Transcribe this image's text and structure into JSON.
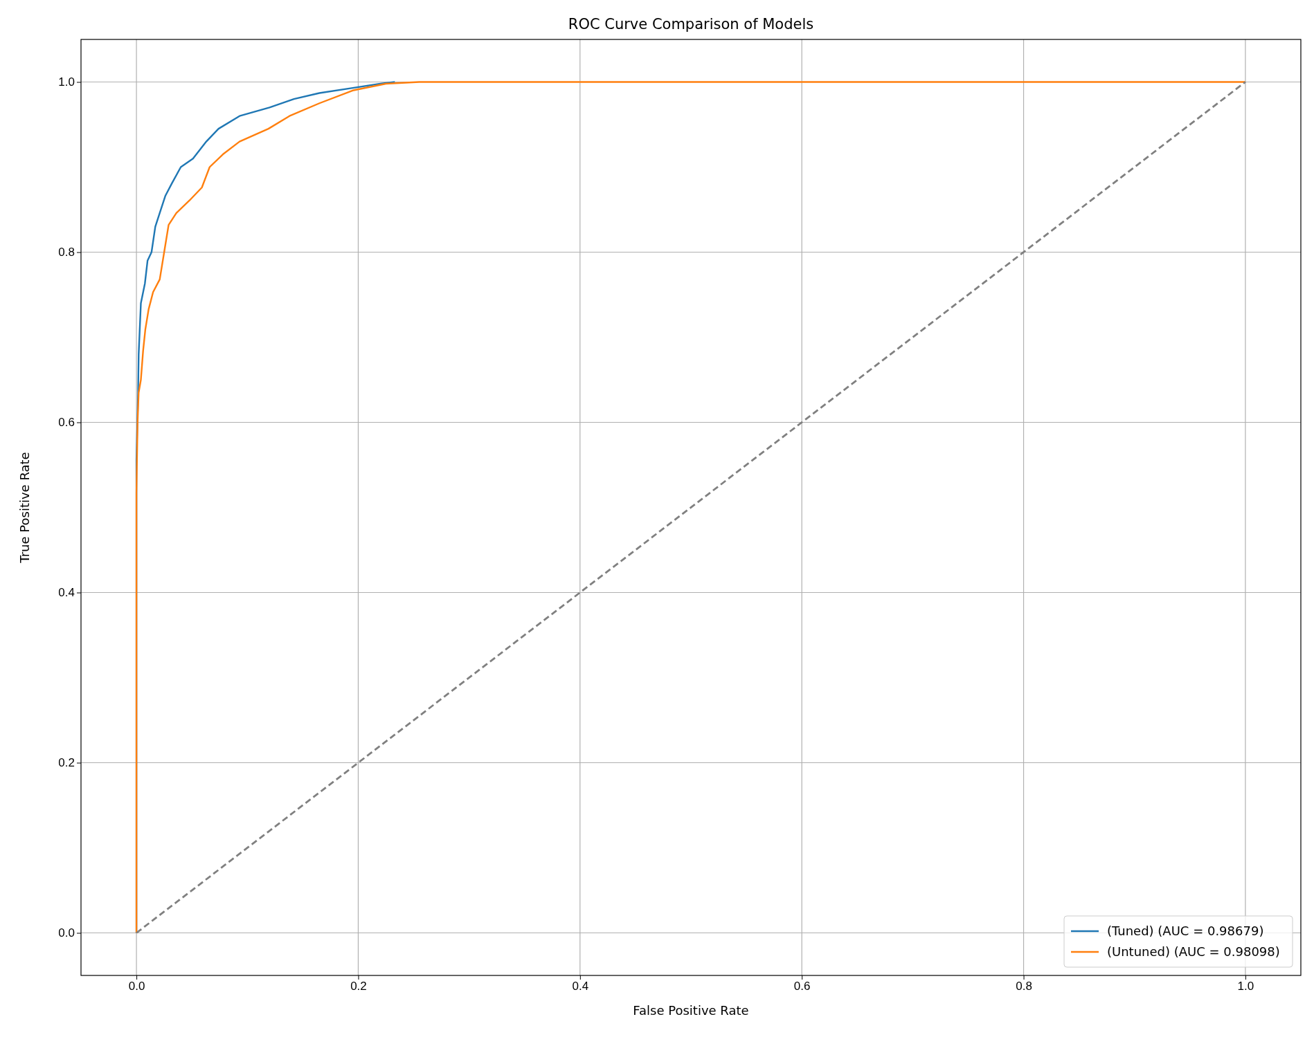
{
  "chart_data": {
    "type": "line",
    "title": "ROC Curve Comparison of Models",
    "xlabel": "False Positive Rate",
    "ylabel": "True Positive Rate",
    "xlim": [
      -0.05,
      1.05
    ],
    "ylim": [
      -0.05,
      1.05
    ],
    "xticks": [
      {
        "value": 0,
        "label": "0.0"
      },
      {
        "value": 0.2,
        "label": "0.2"
      },
      {
        "value": 0.4,
        "label": "0.4"
      },
      {
        "value": 0.6,
        "label": "0.6"
      },
      {
        "value": 0.8,
        "label": "0.8"
      },
      {
        "value": 1,
        "label": "1.0"
      }
    ],
    "yticks": [
      {
        "value": 0,
        "label": "0.0"
      },
      {
        "value": 0.2,
        "label": "0.2"
      },
      {
        "value": 0.4,
        "label": "0.4"
      },
      {
        "value": 0.6,
        "label": "0.6"
      },
      {
        "value": 0.8,
        "label": "0.8"
      },
      {
        "value": 1,
        "label": "1.0"
      }
    ],
    "grid": true,
    "legend": "bottom right",
    "series": [
      {
        "name": "(Tuned) (AUC = 0.98679)",
        "color": "#1f77b4",
        "x": [
          0,
          0,
          0.0015,
          0.002,
          0.004,
          0.0076,
          0.01,
          0.0136,
          0.017,
          0.021,
          0.026,
          0.032,
          0.04,
          0.051,
          0.063,
          0.074,
          0.093,
          0.12,
          0.142,
          0.165,
          0.195,
          0.22,
          0.233
        ],
        "values": [
          0,
          0.556,
          0.635,
          0.68,
          0.74,
          0.763,
          0.79,
          0.8,
          0.83,
          0.846,
          0.866,
          0.881,
          0.9,
          0.91,
          0.93,
          0.945,
          0.96,
          0.97,
          0.98,
          0.987,
          0.993,
          0.998,
          1
        ]
      },
      {
        "name": "(Untuned) (AUC = 0.98098)",
        "color": "#ff7f0e",
        "x": [
          0,
          0,
          0.001,
          0.002,
          0.004,
          0.006,
          0.008,
          0.011,
          0.015,
          0.021,
          0.025,
          0.029,
          0.036,
          0.048,
          0.059,
          0.066,
          0.078,
          0.093,
          0.119,
          0.138,
          0.165,
          0.195,
          0.225,
          0.255,
          1
        ],
        "values": [
          0,
          0.517,
          0.6,
          0.635,
          0.65,
          0.684,
          0.709,
          0.733,
          0.753,
          0.768,
          0.8,
          0.832,
          0.846,
          0.861,
          0.876,
          0.9,
          0.915,
          0.93,
          0.945,
          0.96,
          0.975,
          0.99,
          0.998,
          1,
          1
        ]
      },
      {
        "color": "#808080",
        "line_style": "dashed",
        "x": [
          0,
          1
        ],
        "values": [
          0,
          1
        ]
      }
    ]
  }
}
